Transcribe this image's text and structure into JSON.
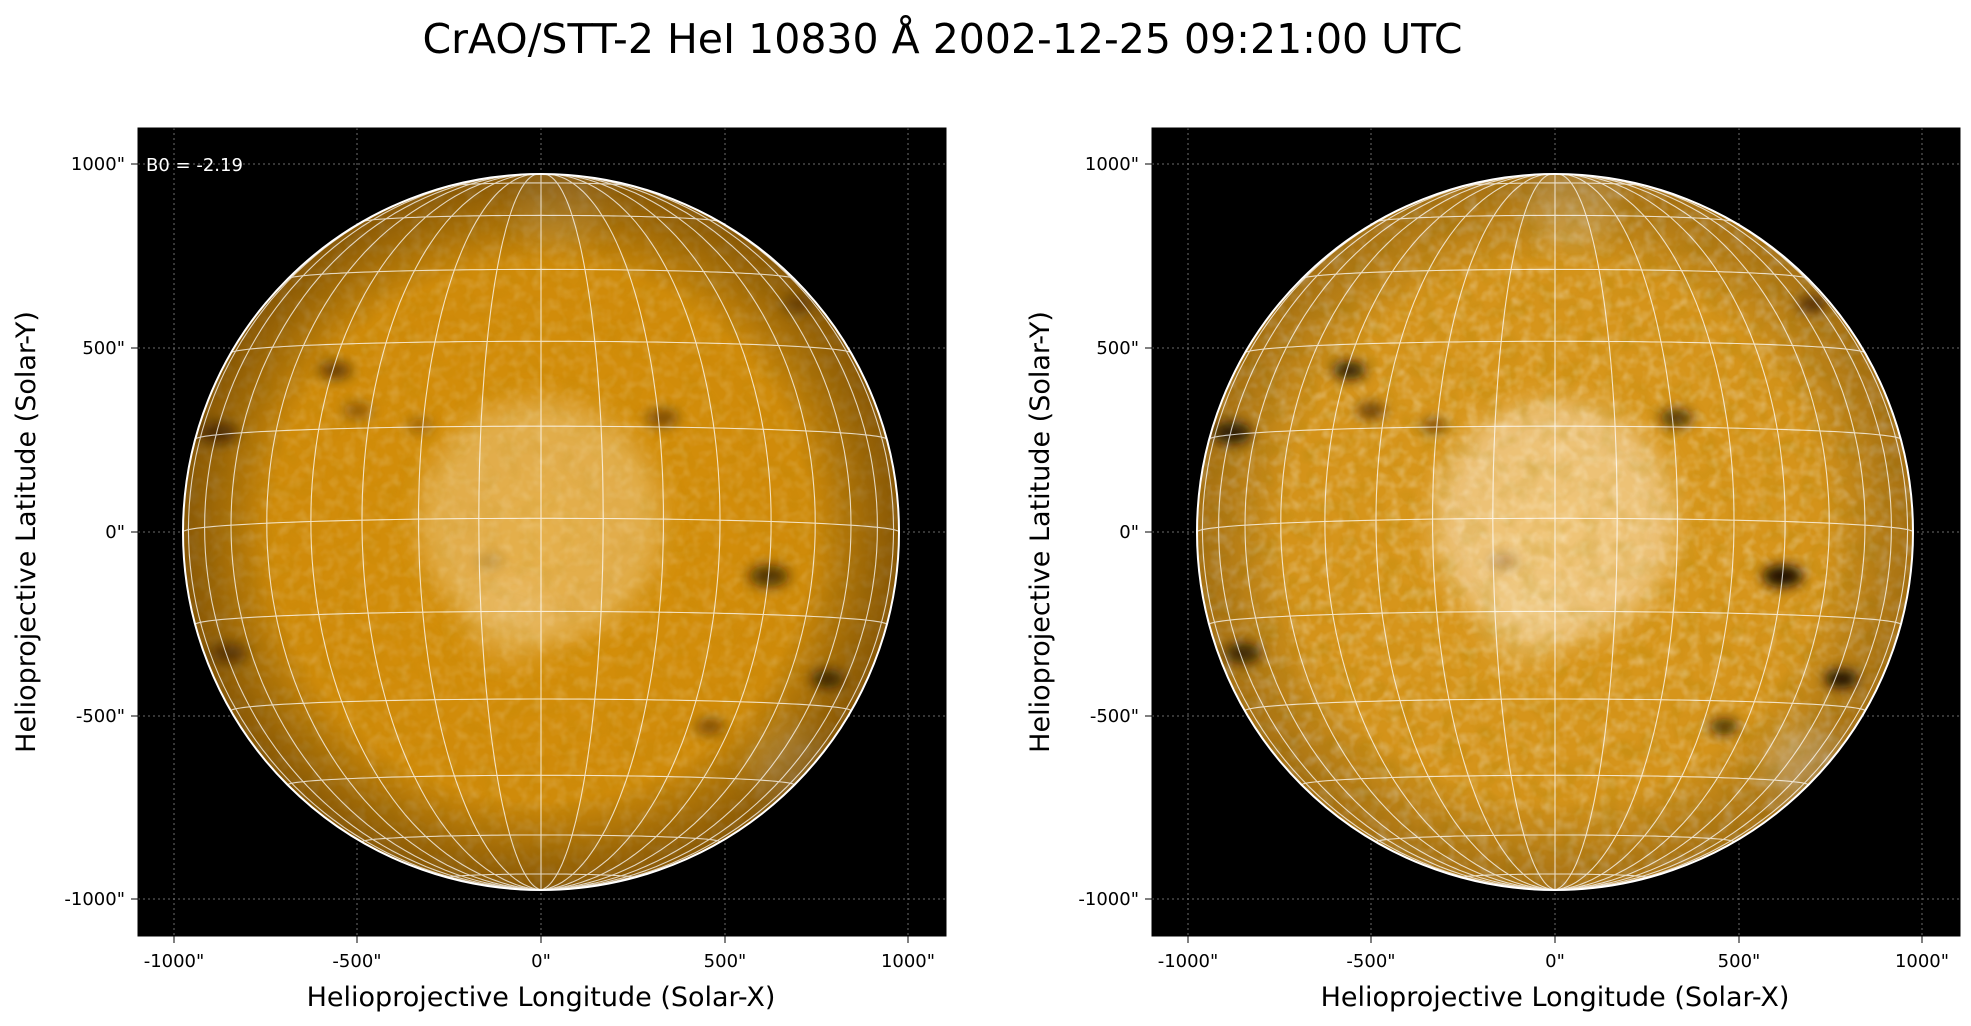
{
  "title": "CrAO/STT-2 HeI 10830 Å 2002-12-25 09:21:00 UTC",
  "colors": {
    "background": "#000000",
    "disk_dark": "#b86a00",
    "disk_mid": "#d8910b",
    "disk_bright": "#f6d69c",
    "grid": "#ffffff",
    "limb": "#ffffff"
  },
  "panels": [
    {
      "id": "left",
      "contrast": "normal",
      "annotation": "B0 = -2.19",
      "xlabel": "Helioprojective Longitude (Solar-X)",
      "ylabel": "Helioprojective Latitude (Solar-Y)",
      "xticks": [
        "-1000\"",
        "-500\"",
        "0\"",
        "500\"",
        "1000\""
      ],
      "yticks": [
        "1000\"",
        "500\"",
        "0\"",
        "-500\"",
        "-1000\""
      ]
    },
    {
      "id": "right",
      "contrast": "high",
      "annotation": "",
      "xlabel": "Helioprojective Longitude (Solar-X)",
      "ylabel": "Helioprojective Latitude (Solar-Y)",
      "xticks": [
        "-1000\"",
        "-500\"",
        "0\"",
        "500\"",
        "1000\""
      ],
      "yticks": [
        "1000\"",
        "500\"",
        "0\"",
        "-500\"",
        "-1000\""
      ]
    }
  ],
  "axis_range_arcsec": {
    "x": [
      -1100,
      1100
    ],
    "y": [
      -1100,
      1100
    ]
  },
  "tick_values_arcsec": [
    -1000,
    -500,
    0,
    500,
    1000
  ],
  "solar_radius_arcsec": 975,
  "b0_deg": -2.19,
  "dark_features": [
    {
      "x": -560,
      "y": 440,
      "r": 45,
      "strength": 0.55
    },
    {
      "x": -500,
      "y": 330,
      "r": 40,
      "strength": 0.35
    },
    {
      "x": -330,
      "y": 290,
      "r": 35,
      "strength": 0.3
    },
    {
      "x": 330,
      "y": 310,
      "r": 45,
      "strength": 0.45
    },
    {
      "x": 620,
      "y": -120,
      "r": 55,
      "strength": 0.7
    },
    {
      "x": 780,
      "y": -400,
      "r": 45,
      "strength": 0.75
    },
    {
      "x": 460,
      "y": -530,
      "r": 40,
      "strength": 0.45
    },
    {
      "x": -880,
      "y": 270,
      "r": 55,
      "strength": 0.55
    },
    {
      "x": -850,
      "y": -330,
      "r": 50,
      "strength": 0.5
    },
    {
      "x": 700,
      "y": 620,
      "r": 40,
      "strength": 0.4
    },
    {
      "x": -140,
      "y": -80,
      "r": 35,
      "strength": 0.15
    }
  ],
  "bright_features": [
    {
      "x": 0,
      "y": 30,
      "r": 330,
      "strength": 0.45
    },
    {
      "x": -80,
      "y": -240,
      "r": 120,
      "strength": 0.25
    },
    {
      "x": 680,
      "y": -640,
      "r": 110,
      "strength": 0.35
    },
    {
      "x": 50,
      "y": 900,
      "r": 120,
      "strength": 0.25
    }
  ]
}
